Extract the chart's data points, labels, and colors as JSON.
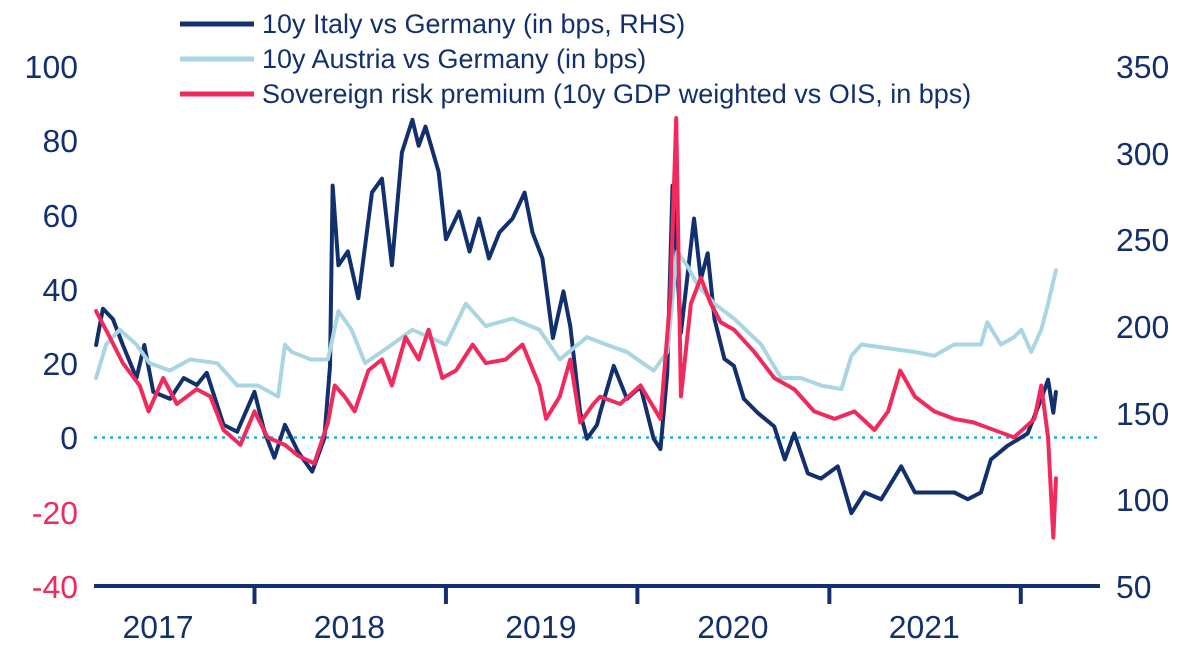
{
  "chart_data": {
    "type": "line",
    "legend": "top left",
    "xlim": [
      "2017-03-01",
      "2022-06-01"
    ],
    "xticks": [
      {
        "value": "2017-07-01",
        "label": "2017"
      },
      {
        "value": "2018-01-01",
        "label": null
      },
      {
        "value": "2018-07-01",
        "label": "2018"
      },
      {
        "value": "2019-01-01",
        "label": null
      },
      {
        "value": "2019-07-01",
        "label": "2019"
      },
      {
        "value": "2020-01-01",
        "label": null
      },
      {
        "value": "2020-07-01",
        "label": "2020"
      },
      {
        "value": "2021-01-01",
        "label": null
      },
      {
        "value": "2021-07-01",
        "label": "2021"
      },
      {
        "value": "2022-01-01",
        "label": null
      }
    ],
    "ylim": [
      -40,
      100
    ],
    "yticks": [
      -40,
      -20,
      0,
      20,
      40,
      60,
      80,
      100
    ],
    "y2lim": [
      50,
      350
    ],
    "y2ticks": [
      50,
      100,
      150,
      200,
      250,
      300,
      350
    ],
    "ref_lines": [
      {
        "axis": "y",
        "value": 0,
        "color": "#29a9e0",
        "line_style": "dotted"
      }
    ],
    "series": [
      {
        "name": "10y Italy vs Germany (in bps, RHS)",
        "color": "#13306e",
        "axis": "y2",
        "x": [
          "2017-03-05",
          "2017-03-18",
          "2017-04-06",
          "2017-04-25",
          "2017-05-21",
          "2017-06-05",
          "2017-06-22",
          "2017-07-24",
          "2017-08-19",
          "2017-09-13",
          "2017-10-02",
          "2017-11-03",
          "2017-11-29",
          "2018-01-01",
          "2018-01-20",
          "2018-02-08",
          "2018-02-28",
          "2018-03-26",
          "2018-04-21",
          "2018-05-14",
          "2018-05-25",
          "2018-05-30",
          "2018-06-10",
          "2018-06-28",
          "2018-07-18",
          "2018-08-13",
          "2018-09-01",
          "2018-09-20",
          "2018-10-09",
          "2018-10-29",
          "2018-11-10",
          "2018-11-23",
          "2018-12-18",
          "2019-01-01",
          "2019-01-26",
          "2019-02-15",
          "2019-03-05",
          "2019-03-24",
          "2019-04-13",
          "2019-05-08",
          "2019-05-31",
          "2019-06-15",
          "2019-07-04",
          "2019-07-24",
          "2019-08-13",
          "2019-08-26",
          "2019-09-14",
          "2019-09-27",
          "2019-10-16",
          "2019-10-22",
          "2019-11-17",
          "2019-12-12",
          "2020-01-07",
          "2020-02-01",
          "2020-02-14",
          "2020-02-27",
          "2020-03-08",
          "2020-03-24",
          "2020-04-18",
          "2020-05-01",
          "2020-05-14",
          "2020-05-27",
          "2020-06-15",
          "2020-07-03",
          "2020-07-22",
          "2020-08-17",
          "2020-09-18",
          "2020-10-08",
          "2020-10-26",
          "2020-11-21",
          "2020-12-16",
          "2021-01-17",
          "2021-02-12",
          "2021-03-09",
          "2021-04-10",
          "2021-05-18",
          "2021-06-13",
          "2021-07-20",
          "2021-08-27",
          "2021-09-22",
          "2021-10-17",
          "2021-11-05",
          "2021-12-07",
          "2022-01-14",
          "2022-02-09",
          "2022-02-22",
          "2022-03-04",
          "2022-03-09"
        ],
        "values": [
          189,
          210,
          204,
          189,
          170,
          189,
          162,
          158,
          170,
          166,
          173,
          143,
          139,
          162,
          139,
          124,
          143,
          127,
          116,
          135,
          177,
          281,
          235,
          243,
          216,
          277,
          285,
          235,
          300,
          319,
          304,
          315,
          289,
          250,
          266,
          243,
          262,
          239,
          254,
          262,
          277,
          254,
          239,
          193,
          220,
          200,
          150,
          135,
          143,
          150,
          177,
          158,
          165,
          135,
          129,
          173,
          281,
          196,
          262,
          227,
          242,
          204,
          181,
          177,
          158,
          150,
          142,
          123,
          138,
          115,
          112,
          119,
          92,
          104,
          100,
          119,
          104,
          104,
          104,
          100,
          104,
          123,
          131,
          138,
          158,
          169,
          150,
          162
        ]
      },
      {
        "name": "10y Austria vs Germany (in bps)",
        "color": "#a9d6e2",
        "x": [
          "2017-03-05",
          "2017-03-24",
          "2017-04-19",
          "2017-05-21",
          "2017-06-15",
          "2017-07-24",
          "2017-08-31",
          "2017-10-22",
          "2017-11-29",
          "2018-01-07",
          "2018-02-15",
          "2018-02-28",
          "2018-03-13",
          "2018-04-18",
          "2018-05-21",
          "2018-06-10",
          "2018-07-05",
          "2018-07-31",
          "2018-09-20",
          "2018-10-29",
          "2019-01-01",
          "2019-02-08",
          "2019-03-18",
          "2019-05-08",
          "2019-06-28",
          "2019-08-06",
          "2019-09-27",
          "2019-11-03",
          "2019-12-12",
          "2020-02-01",
          "2020-02-27",
          "2020-03-17",
          "2020-04-06",
          "2020-04-25",
          "2020-05-27",
          "2020-07-03",
          "2020-08-24",
          "2020-10-01",
          "2020-11-08",
          "2020-12-16",
          "2021-01-24",
          "2021-02-12",
          "2021-03-03",
          "2021-04-23",
          "2021-06-13",
          "2021-07-20",
          "2021-08-27",
          "2021-10-17",
          "2021-10-29",
          "2021-11-24",
          "2021-12-19",
          "2022-01-02",
          "2022-01-21",
          "2022-02-09",
          "2022-02-22",
          "2022-03-09"
        ],
        "values": [
          16,
          25,
          29,
          25,
          20,
          18,
          21,
          20,
          14,
          14,
          11,
          25,
          23,
          21,
          21,
          34,
          29,
          20,
          25,
          29,
          25,
          36,
          30,
          32,
          29,
          21,
          27,
          25,
          23,
          18,
          23,
          50,
          46,
          41,
          36,
          32,
          25,
          16,
          16,
          14,
          13,
          22,
          25,
          24,
          23,
          22,
          25,
          25,
          31,
          25,
          27,
          29,
          23,
          29,
          36,
          45
        ]
      },
      {
        "name": "Sovereign risk premium (10y GDP weighted vs OIS, in bps)",
        "color": "#f02a5c",
        "x": [
          "2017-03-05",
          "2017-03-31",
          "2017-04-25",
          "2017-05-27",
          "2017-06-13",
          "2017-07-11",
          "2017-08-06",
          "2017-09-13",
          "2017-10-09",
          "2017-11-03",
          "2017-12-05",
          "2018-01-01",
          "2018-01-26",
          "2018-02-28",
          "2018-03-26",
          "2018-04-25",
          "2018-05-21",
          "2018-06-03",
          "2018-06-22",
          "2018-07-11",
          "2018-08-06",
          "2018-09-01",
          "2018-09-20",
          "2018-10-16",
          "2018-11-10",
          "2018-11-29",
          "2018-12-25",
          "2019-01-20",
          "2019-02-21",
          "2019-03-18",
          "2019-04-25",
          "2019-05-27",
          "2019-06-28",
          "2019-07-11",
          "2019-08-06",
          "2019-08-26",
          "2019-09-14",
          "2019-10-09",
          "2019-10-22",
          "2019-11-29",
          "2020-01-07",
          "2020-02-14",
          "2020-03-04",
          "2020-03-15",
          "2020-03-24",
          "2020-04-12",
          "2020-05-01",
          "2020-05-20",
          "2020-06-08",
          "2020-07-03",
          "2020-08-11",
          "2020-09-18",
          "2020-10-26",
          "2020-12-03",
          "2021-01-11",
          "2021-02-18",
          "2021-03-28",
          "2021-04-23",
          "2021-05-16",
          "2021-06-13",
          "2021-07-20",
          "2021-08-27",
          "2021-10-04",
          "2021-11-11",
          "2021-12-19",
          "2022-01-27",
          "2022-02-09",
          "2022-02-22",
          "2022-03-04",
          "2022-03-09"
        ],
        "values": [
          34,
          27,
          20,
          14,
          7,
          16,
          9,
          13,
          11,
          2,
          -2,
          7,
          0,
          -2,
          -5,
          -7,
          4,
          14,
          11,
          7,
          18,
          21,
          14,
          27,
          21,
          29,
          16,
          18,
          25,
          20,
          21,
          25,
          14,
          5,
          11,
          21,
          4,
          9,
          11,
          9,
          14,
          5,
          38,
          86,
          11,
          36,
          43,
          36,
          31,
          29,
          23,
          16,
          13,
          7,
          5,
          7,
          2,
          7,
          18,
          11,
          7,
          5,
          4,
          2,
          0,
          5,
          14,
          0,
          -27,
          -11
        ]
      }
    ]
  }
}
